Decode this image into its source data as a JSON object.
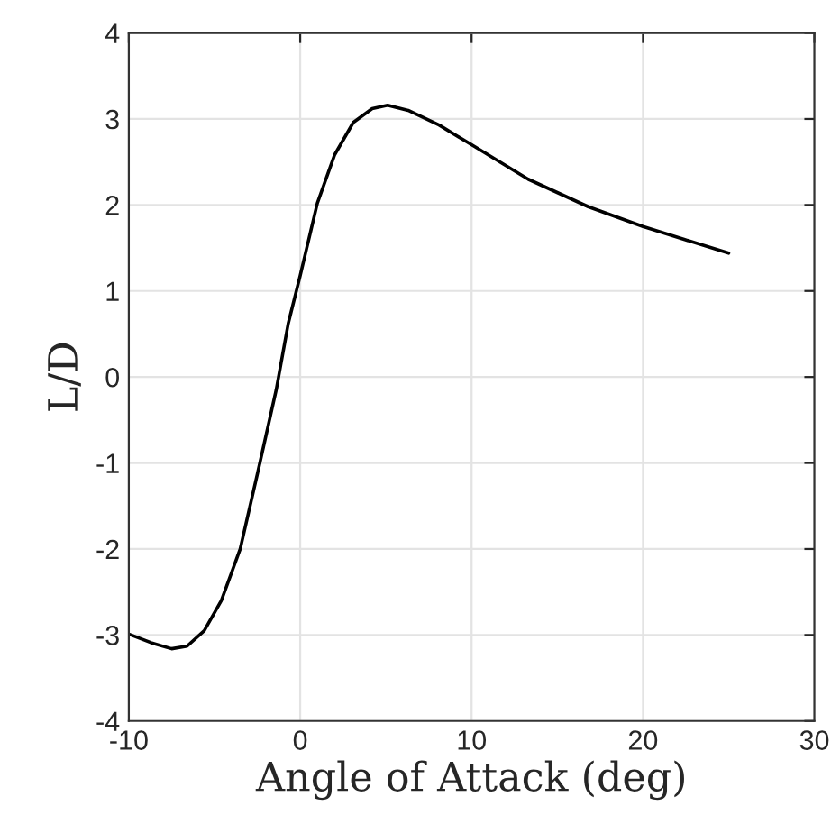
{
  "chart_data": {
    "type": "line",
    "xlabel": "Angle of Attack (deg)",
    "ylabel": "L/D",
    "x": [
      -10,
      -8.7,
      -7.5,
      -6.6,
      -5.6,
      -4.6,
      -3.5,
      -2.5,
      -1.4,
      -0.7,
      0,
      1.0,
      2.0,
      3.1,
      4.2,
      5.1,
      6.3,
      8.1,
      10.0,
      13.3,
      16.8,
      20.0,
      22.4,
      25.0
    ],
    "series": [
      {
        "color": "#000000",
        "values": [
          -2.99,
          -3.09,
          -3.16,
          -3.13,
          -2.95,
          -2.6,
          -2.0,
          -1.13,
          -0.15,
          0.62,
          1.18,
          2.02,
          2.58,
          2.96,
          3.12,
          3.16,
          3.1,
          2.93,
          2.7,
          2.3,
          1.98,
          1.75,
          1.6,
          1.44
        ]
      }
    ],
    "xlim": [
      -10,
      30
    ],
    "xticks": [
      {
        "value": -10,
        "label": "-10"
      },
      0,
      10,
      20,
      30
    ],
    "ylim": [
      -4,
      4
    ],
    "yticks": [
      {
        "value": -4,
        "label": "-4"
      },
      {
        "value": -3,
        "label": "-3"
      },
      {
        "value": -2,
        "label": "-2"
      },
      {
        "value": -1,
        "label": "-1"
      },
      0,
      1,
      2,
      3,
      4
    ],
    "grid": true,
    "marker": "none",
    "line_style": "solid",
    "legend": false
  }
}
